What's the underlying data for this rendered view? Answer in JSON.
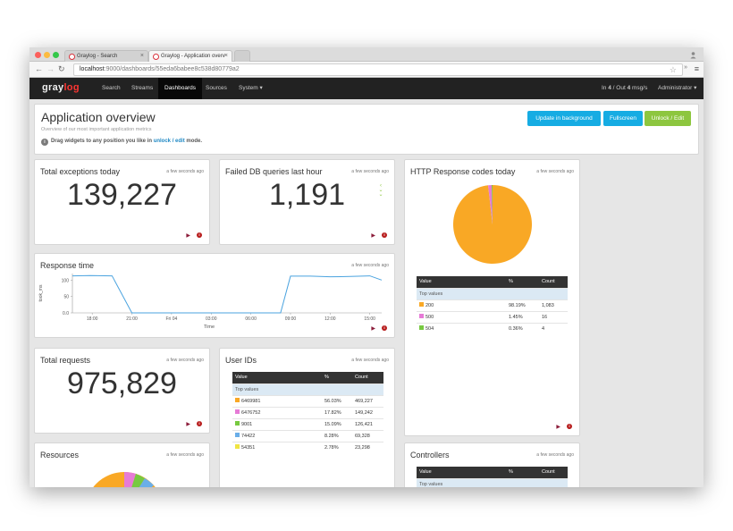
{
  "browser": {
    "tabs": [
      {
        "title": "Graylog - Search",
        "close": "×"
      },
      {
        "title": "Graylog - Application overv",
        "close": "×"
      }
    ],
    "url_host": "localhost",
    "url_path": ":9000/dashboards/55eda6babee8c538d80779a2",
    "icons": [
      "back-icon",
      "forward-icon",
      "reload-icon",
      "star-icon",
      "menu-icon",
      "person-icon"
    ]
  },
  "navbar": {
    "logo_a": "gray",
    "logo_b": "log",
    "links": [
      "Search",
      "Streams",
      "Dashboards",
      "Sources",
      "System"
    ],
    "throughput_in_label": "In",
    "throughput_in": "4",
    "throughput_out_label": "/ Out",
    "throughput_out": "4",
    "throughput_unit": "msg/s",
    "user": "Administrator",
    "caret": "▾"
  },
  "header": {
    "title": "Application overview",
    "subtitle": "Overview of our most important application metrics",
    "hint_before": "Drag widgets to any position you like in",
    "hint_link": "unlock / edit",
    "hint_after": "mode.",
    "btn_update": "Update in background",
    "btn_fullscreen": "Fullscreen",
    "btn_unlock": "Unlock / Edit"
  },
  "widgets": {
    "exceptions": {
      "title": "Total exceptions today",
      "time": "a few seconds ago",
      "value": "139,227"
    },
    "failed_db": {
      "title": "Failed DB queries last hour",
      "time": "a few seconds ago",
      "value": "1,191"
    },
    "http": {
      "title": "HTTP Response codes today",
      "time": "a few seconds ago",
      "headers": [
        "Value",
        "%",
        "Count"
      ],
      "top_label": "Top values",
      "rows": [
        {
          "value": "200",
          "pct": "98.19%",
          "count": "1,083",
          "color": "#f9a825"
        },
        {
          "value": "500",
          "pct": "1.45%",
          "count": "16",
          "color": "#e67bd6"
        },
        {
          "value": "504",
          "pct": "0.36%",
          "count": "4",
          "color": "#77c940"
        }
      ]
    },
    "response": {
      "title": "Response time",
      "time": "a few seconds ago",
      "ylabel": "took_ms",
      "xlabel": "Time"
    },
    "total_requests": {
      "title": "Total requests",
      "time": "a few seconds ago",
      "value": "975,829"
    },
    "user_ids": {
      "title": "User IDs",
      "time": "a few seconds ago",
      "headers": [
        "Value",
        "%",
        "Count"
      ],
      "top_label": "Top values",
      "rows": [
        {
          "value": "6469981",
          "pct": "56.03%",
          "count": "469,227",
          "color": "#f9a825"
        },
        {
          "value": "6476752",
          "pct": "17.82%",
          "count": "149,242",
          "color": "#e67bd6"
        },
        {
          "value": "9001",
          "pct": "15.09%",
          "count": "126,421",
          "color": "#77c940"
        },
        {
          "value": "74422",
          "pct": "8.28%",
          "count": "69,328",
          "color": "#6aaee8"
        },
        {
          "value": "54351",
          "pct": "2.78%",
          "count": "23,298",
          "color": "#f0e442"
        }
      ]
    },
    "resources": {
      "title": "Resources",
      "time": "a few seconds ago"
    },
    "controllers": {
      "title": "Controllers",
      "time": "a few seconds ago",
      "headers": [
        "Value",
        "%",
        "Count"
      ],
      "top_label": "Top values"
    }
  },
  "chart_data": {
    "type": "line",
    "ylabel": "took_ms",
    "xlabel": "Time",
    "ylim": [
      0,
      120
    ],
    "yticks": [
      "0.0",
      "50",
      "100"
    ],
    "xticks": [
      "18:00",
      "21:00",
      "Fri 04",
      "03:00",
      "06:00",
      "09:00",
      "12:00",
      "15:00"
    ],
    "series": [
      {
        "color": "#4aa3df",
        "x": [
          0,
          0.9,
          2.0,
          3.0,
          4.0,
          5.0,
          6.0,
          7.0,
          8.0,
          9.0,
          10.5,
          11.0,
          12.0,
          13.0,
          14.0,
          15.0,
          15.6
        ],
        "y": [
          113,
          114,
          113,
          0,
          0,
          0,
          0,
          0,
          0,
          0,
          0,
          112,
          112,
          110,
          111,
          113,
          100
        ]
      }
    ]
  },
  "pie_http": [
    98.19,
    1.45,
    0.36
  ]
}
